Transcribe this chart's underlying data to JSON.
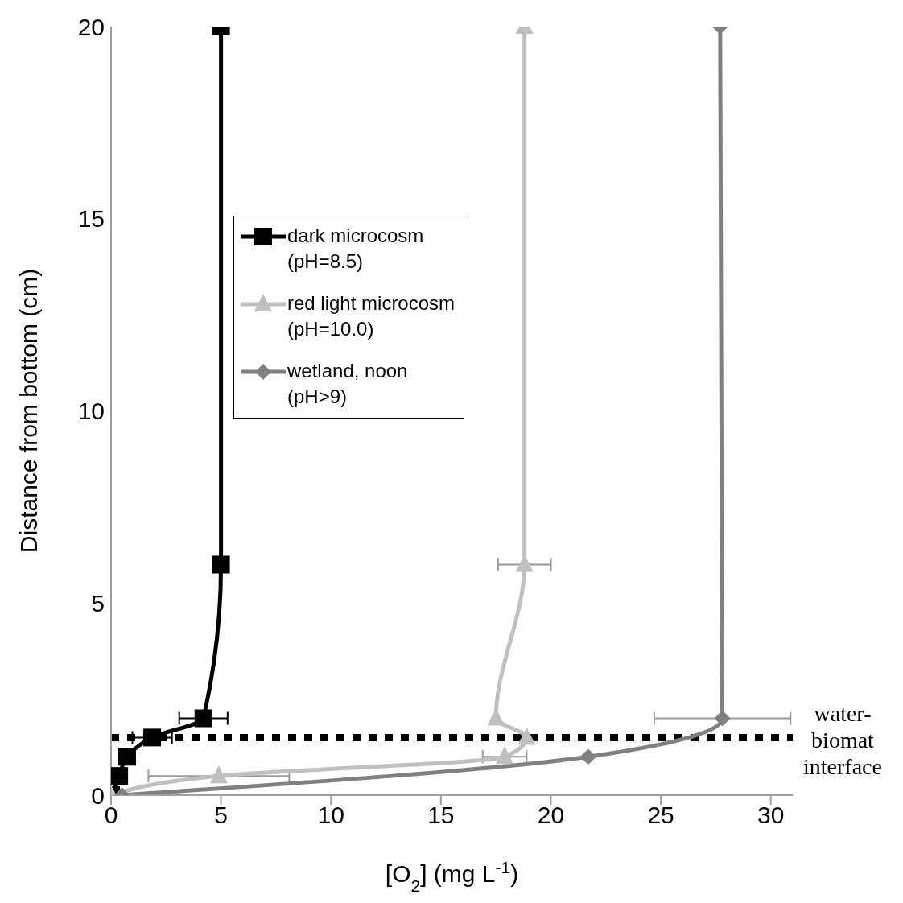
{
  "chart_data": {
    "type": "line",
    "xlabel": "[O$_{2}$] (mg L$^{-1}$)",
    "ylabel": "Distance from bottom (cm)",
    "xlim": [
      0,
      31
    ],
    "xticks": [
      0,
      5,
      10,
      15,
      20,
      25,
      30
    ],
    "ylim": [
      0,
      20
    ],
    "yticks": [
      0,
      5,
      10,
      15,
      20
    ],
    "legend": "top left",
    "series": [
      {
        "name": "dark microcosm (pH=8.5)",
        "color": "#000000",
        "marker": "square",
        "x": [
          0,
          0.37,
          0.73,
          1.87,
          4.2,
          5,
          5
        ],
        "values": [
          0,
          0.5,
          1,
          1.5,
          2,
          6,
          20
        ],
        "xerrors": [
          null,
          null,
          null,
          0.9,
          1.1,
          null,
          null
        ]
      },
      {
        "name": "red light microcosm (pH=10.0)",
        "color": "#c0c0c0",
        "marker": "triangle",
        "x": [
          0,
          4.9,
          17.9,
          18.9,
          17.5,
          18.8,
          18.8
        ],
        "values": [
          0,
          0.5,
          1,
          1.5,
          2,
          6,
          20
        ],
        "xerrors": [
          null,
          3.2,
          1,
          null,
          null,
          1.2,
          null
        ]
      },
      {
        "name": "wetland, noon (pH>9)",
        "color": "#808080",
        "marker": "diamond",
        "x": [
          0.5,
          21.7,
          27.8,
          27.7
        ],
        "values": [
          0,
          1,
          2,
          20
        ],
        "xerrors": [
          null,
          null,
          3.1,
          null
        ]
      }
    ],
    "ref_lines": [
      {
        "axis": "y",
        "value": 1.5,
        "label": "water-biomat interface",
        "color": "#000000",
        "line_style": "dotted"
      }
    ]
  }
}
